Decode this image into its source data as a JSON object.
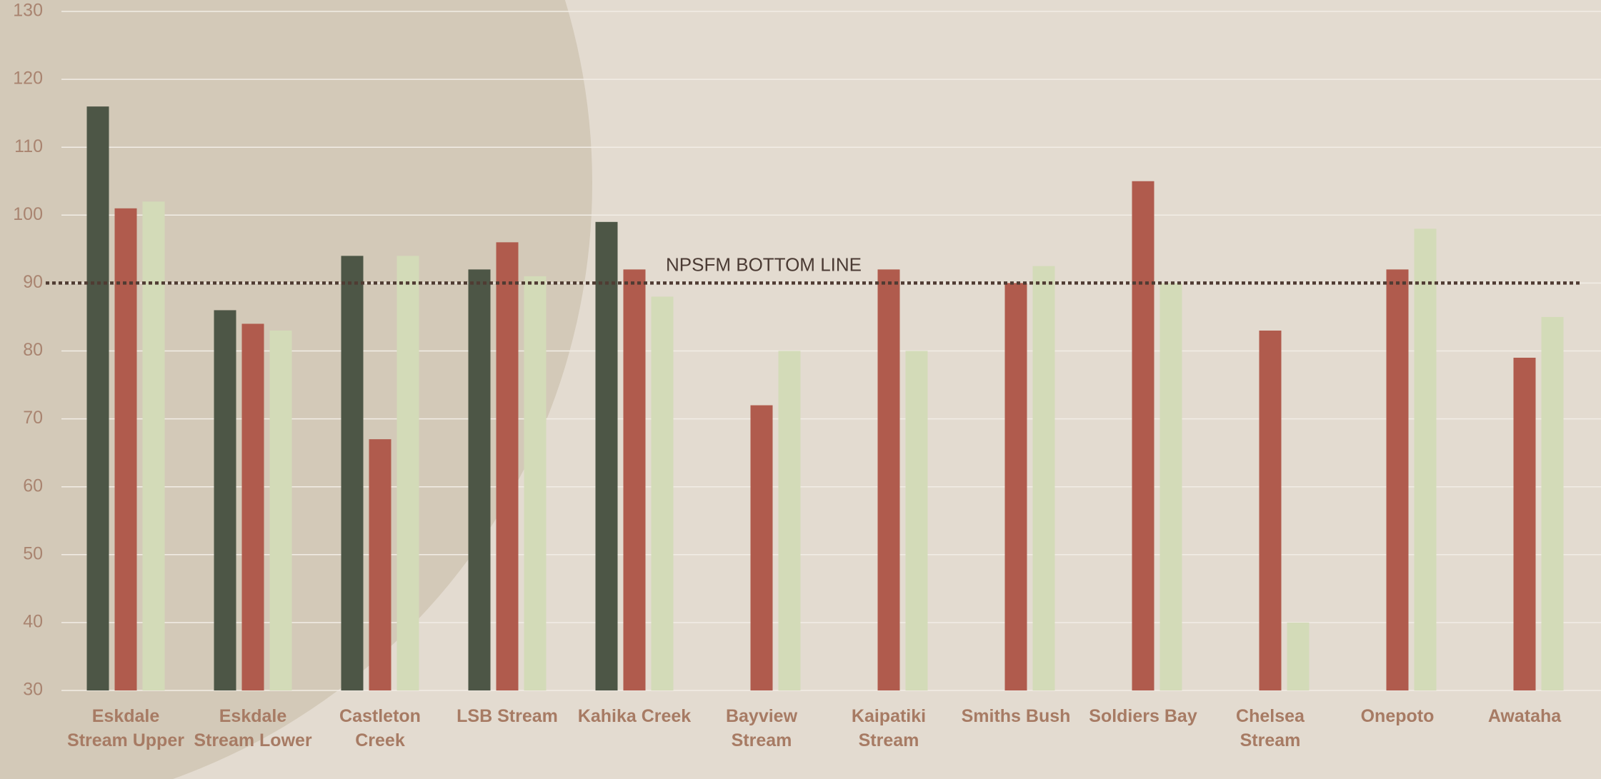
{
  "chart_data": {
    "type": "bar",
    "categories": [
      "Eskdale Stream Upper",
      "Eskdale Stream Lower",
      "Castleton Creek",
      "LSB Stream",
      "Kahika Creek",
      "Bayview Stream",
      "Kaipatiki Stream",
      "Smiths Bush",
      "Soldiers Bay",
      "Chelsea Stream",
      "Onepoto",
      "Awataha"
    ],
    "series": [
      {
        "color": "#4d5646",
        "values": [
          116,
          86,
          94,
          92,
          99,
          null,
          null,
          null,
          null,
          null,
          null,
          null
        ]
      },
      {
        "color": "#b05b4d",
        "values": [
          101,
          84,
          67,
          96,
          92,
          72,
          92,
          90,
          105,
          83,
          92,
          79
        ]
      },
      {
        "color": "#d3dbb8",
        "values": [
          102,
          83,
          94,
          91,
          88,
          80,
          80,
          92.5,
          90,
          40,
          98,
          85
        ]
      }
    ],
    "ylim": [
      30,
      130
    ],
    "yticks": [
      30,
      40,
      50,
      60,
      70,
      80,
      90,
      100,
      110,
      120,
      130
    ],
    "grid": true,
    "reference_line": {
      "value": 90,
      "label": "NPSFM BOTTOM LINE"
    }
  }
}
